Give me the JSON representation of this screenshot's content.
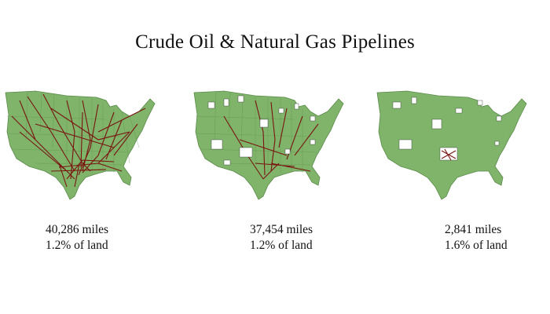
{
  "title": "Crude Oil & Natural Gas Pipelines",
  "colors": {
    "land": "#7fb46a",
    "state_border": "#5a8a4a",
    "pipeline": "#7a1410",
    "cutout": "#ffffff",
    "cutout_marks": "#333333",
    "background": "#ffffff"
  },
  "panels": [
    {
      "miles": "40,286 miles",
      "land_share": "1.2% of land",
      "pipeline_density": "dense",
      "cutouts": "none"
    },
    {
      "miles": "37,454 miles",
      "land_share": "1.2% of land",
      "pipeline_density": "moderate",
      "cutouts": "scattered"
    },
    {
      "miles": "2,841 miles",
      "land_share": "1.6% of land",
      "pipeline_density": "minimal",
      "cutouts": "scattered"
    }
  ]
}
